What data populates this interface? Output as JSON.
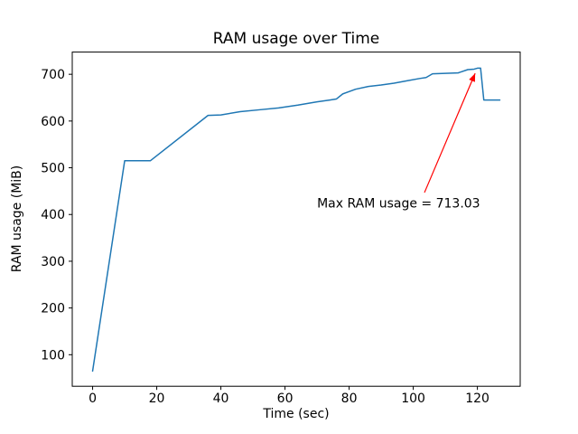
{
  "chart_data": {
    "type": "line",
    "title": "RAM usage over Time",
    "xlabel": "Time (sec)",
    "ylabel": "RAM usage (MiB)",
    "xlim": [
      -6.35,
      133.35
    ],
    "ylim": [
      32.5,
      747.5
    ],
    "xticks": [
      0,
      20,
      40,
      60,
      80,
      100,
      120
    ],
    "yticks": [
      100,
      200,
      300,
      400,
      500,
      600,
      700
    ],
    "grid": false,
    "legend": "none",
    "line_color": "#1f77b4",
    "background_color": "#ffffff",
    "x": [
      0,
      10,
      18,
      36,
      40,
      46,
      52,
      58,
      64,
      70,
      74,
      76,
      78,
      82,
      86,
      90,
      94,
      98,
      102,
      104,
      106,
      110,
      114,
      117,
      119,
      120,
      121,
      122,
      127
    ],
    "y": [
      65,
      515,
      515,
      612,
      613,
      620,
      624,
      628,
      634,
      641,
      645,
      647,
      658,
      668,
      674,
      677,
      681,
      686,
      691,
      693,
      701,
      702,
      703,
      710,
      711,
      713.03,
      713,
      645,
      645
    ],
    "max_value": 713.03,
    "annotation": {
      "text": "Max RAM usage = 713.03",
      "color": "#ff0000",
      "text_x": 70,
      "text_y": 425,
      "arrow_from_x": 103.5,
      "arrow_from_y": 447,
      "arrow_to_x": 119.3,
      "arrow_to_y": 702
    }
  }
}
